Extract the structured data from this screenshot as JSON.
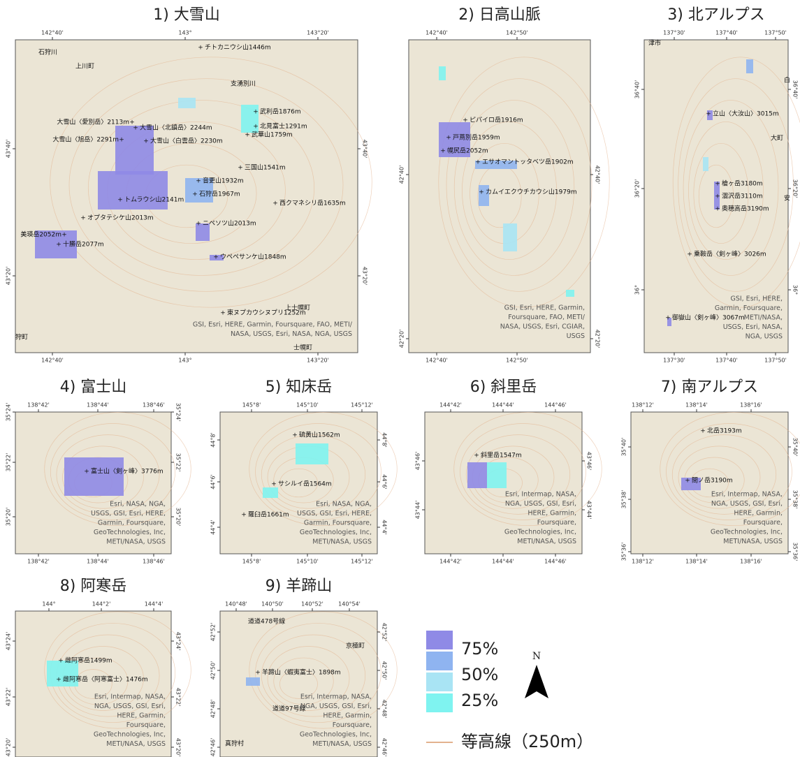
{
  "panels": [
    {
      "title": "1) 大雪山",
      "xticks": [
        "142°40'",
        "143°",
        "143°20'"
      ],
      "yticks": [
        "43°40'",
        "43°20'"
      ],
      "labels": [
        "チトカニウシ山1446m",
        "武利岳1876m",
        "北見富士1291m",
        "武華山1759m",
        "大雪山〈愛別岳〉2113m",
        "大雪山〈北鎮岳〉2244m",
        "大雪山〈旭岳〉2291m",
        "大雪山〈白雲岳〉2230m",
        "三国山1541m",
        "音更山1932m",
        "石狩岳1967m",
        "トムラウシ山2141m",
        "西クマネシリ岳1635m",
        "オプタテシケ山2013m",
        "美瑛岳2052m",
        "ニペソツ山2013m",
        "十勝岳2077m",
        "ウペペサンケ山1848m",
        "東ヌプカウシヌプリ1252m"
      ],
      "places": [
        "石狩川",
        "上川町",
        "支湧別川",
        "上士幌町",
        "士幌町",
        "狩町"
      ],
      "attribution": [
        "GSI, Esri, HERE, Garmin, Foursquare, FAO, METI/",
        "NASA, USGS, Esri, NASA, NGA, USGS"
      ]
    },
    {
      "title": "2) 日高山脈",
      "xticks": [
        "142°40'",
        "142°50'"
      ],
      "yticks": [
        "42°40'",
        "42°20'"
      ],
      "labels": [
        "ピパイロ岳1916m",
        "戸蔦別岳1959m",
        "幌尻岳2052m",
        "エサオマントッタベツ岳1902m",
        "カムイエクウチカウシ山1979m"
      ],
      "places": [],
      "attribution": [
        "GSI, Esri, HERE, Garmin,",
        "Foursquare, FAO, METI/",
        "NASA, USGS, Esri, CGIAR,",
        "USGS"
      ]
    },
    {
      "title": "3) 北アルプス",
      "xticks": [
        "137°30'",
        "137°40'",
        "137°50'"
      ],
      "yticks": [
        "36°40'",
        "36°20'",
        "36°"
      ],
      "labels": [
        "立山〈大汝山〉3015m",
        "槍ヶ岳3180m",
        "涸沢岳3110m",
        "奥穂高岳3190m",
        "乗鞍岳〈剣ヶ峰〉3026m",
        "御嶽山〈剣ヶ峰〉3067m"
      ],
      "places": [
        "津市",
        "白",
        "大町",
        "安"
      ],
      "attribution": [
        "GSI, Esri, HERE,",
        "Garmin, Foursquare,",
        "METI/NASA,",
        "USGS, Esri, NASA,",
        "NGA, USGS"
      ]
    },
    {
      "title": "4) 富士山",
      "xticks": [
        "138°42'",
        "138°44'",
        "138°46'"
      ],
      "yticks": [
        "35°24'",
        "35°22'",
        "35°20'"
      ],
      "labels": [
        "富士山〈剣ヶ峰〉3776m"
      ],
      "places": [],
      "attribution": [
        "Esri, NASA, NGA,",
        "USGS, GSI, Esri, HERE,",
        "Garmin, Foursquare,",
        "GeoTechnologies, Inc,",
        "METI/NASA, USGS"
      ]
    },
    {
      "title": "5) 知床岳",
      "xticks": [
        "145°8'",
        "145°10'",
        "145°12'"
      ],
      "yticks": [
        "44°8'",
        "44°6'",
        "44°4'"
      ],
      "labels": [
        "硫黄山1562m",
        "サシルイ岳1564m",
        "羅臼岳1661m"
      ],
      "places": [],
      "attribution": [
        "Esri, NASA, NGA,",
        "USGS, GSI, Esri, HERE,",
        "Garmin, Foursquare,",
        "GeoTechnologies, Inc,",
        "METI/NASA, USGS"
      ]
    },
    {
      "title": "6) 斜里岳",
      "xticks": [
        "144°42'",
        "144°44'",
        "144°46'"
      ],
      "yticks": [
        "43°46'",
        "43°44'"
      ],
      "labels": [
        "斜里岳1547m"
      ],
      "places": [],
      "attribution": [
        "Esri, Intermap, NASA,",
        "NGA, USGS, GSI, Esri,",
        "HERE, Garmin,",
        "Foursquare,",
        "GeoTechnologies, Inc,",
        "METI/NASA, USGS"
      ]
    },
    {
      "title": "7) 南アルプス",
      "xticks": [
        "138°12'",
        "138°14'",
        "138°16'"
      ],
      "yticks": [
        "35°40'",
        "35°38'",
        "35°36'"
      ],
      "labels": [
        "北岳3193m",
        "間ノ岳3190m"
      ],
      "places": [],
      "attribution": [
        "Esri, Intermap, NASA,",
        "NGA, USGS, GSI, Esri,",
        "HERE, Garmin,",
        "Foursquare,",
        "GeoTechnologies, Inc,",
        "METI/NASA, USGS"
      ]
    },
    {
      "title": "8) 阿寒岳",
      "xticks": [
        "144°",
        "144°2'",
        "144°4'"
      ],
      "yticks": [
        "43°24'",
        "43°22'",
        "43°20'"
      ],
      "labels": [
        "雌阿寒岳1499m",
        "雌阿寒岳〈阿寒富士〉1476m"
      ],
      "places": [],
      "attribution": [
        "Esri, Intermap, NASA,",
        "NGA, USGS, GSI, Esri,",
        "HERE, Garmin,",
        "Foursquare,",
        "GeoTechnologies, Inc,",
        "METI/NASA, USGS"
      ]
    },
    {
      "title": "9) 羊蹄山",
      "xticks": [
        "140°48'",
        "140°50'",
        "140°52'",
        "140°54'"
      ],
      "yticks": [
        "42°52'",
        "42°50'",
        "42°48'",
        "42°46'"
      ],
      "labels": [
        "羊蹄山〈蝦夷富士〉1898m"
      ],
      "places": [
        "道道478号線",
        "京極町",
        "道道97号線",
        "真狩村"
      ],
      "attribution": [
        "Esri, Intermap, NASA,",
        "NGA, USGS, GSI, Esri,",
        "HERE, Garmin,",
        "Foursquare,",
        "GeoTechnologies, Inc,",
        "METI/NASA, USGS"
      ]
    }
  ],
  "legend": {
    "colors": [
      "#8f8ae6",
      "#8fb4f0",
      "#a9e4f4",
      "#7ff3f0"
    ],
    "labels": [
      "75%",
      "50%",
      "25%"
    ],
    "contour_label": "等高線（250m）",
    "contour_color": "#e3b28e",
    "north": "N"
  }
}
